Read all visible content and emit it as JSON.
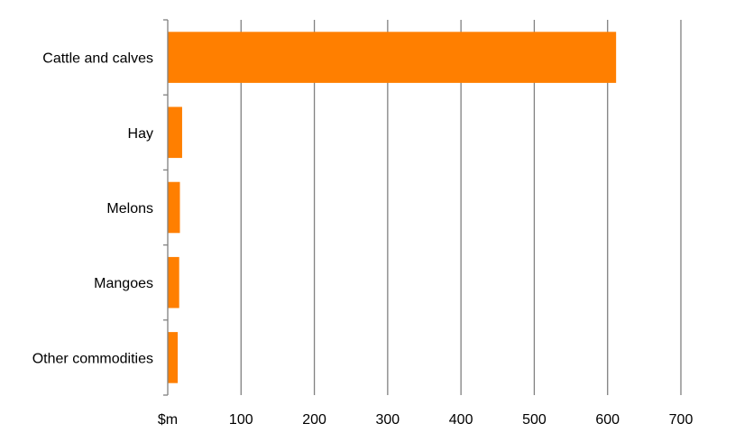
{
  "chart_data": {
    "type": "bar",
    "orientation": "horizontal",
    "categories": [
      "Cattle and calves",
      "Hay",
      "Melons",
      "Mangoes",
      "Other commodities"
    ],
    "values": [
      611,
      19,
      16,
      15,
      13
    ],
    "x_ticks": [
      "$m",
      "100",
      "200",
      "300",
      "400",
      "500",
      "600",
      "700"
    ],
    "xlim": [
      0,
      700
    ],
    "grid": "vertical",
    "legend": "none",
    "bar_color": "#FF7F00",
    "grid_color": "#808080"
  }
}
